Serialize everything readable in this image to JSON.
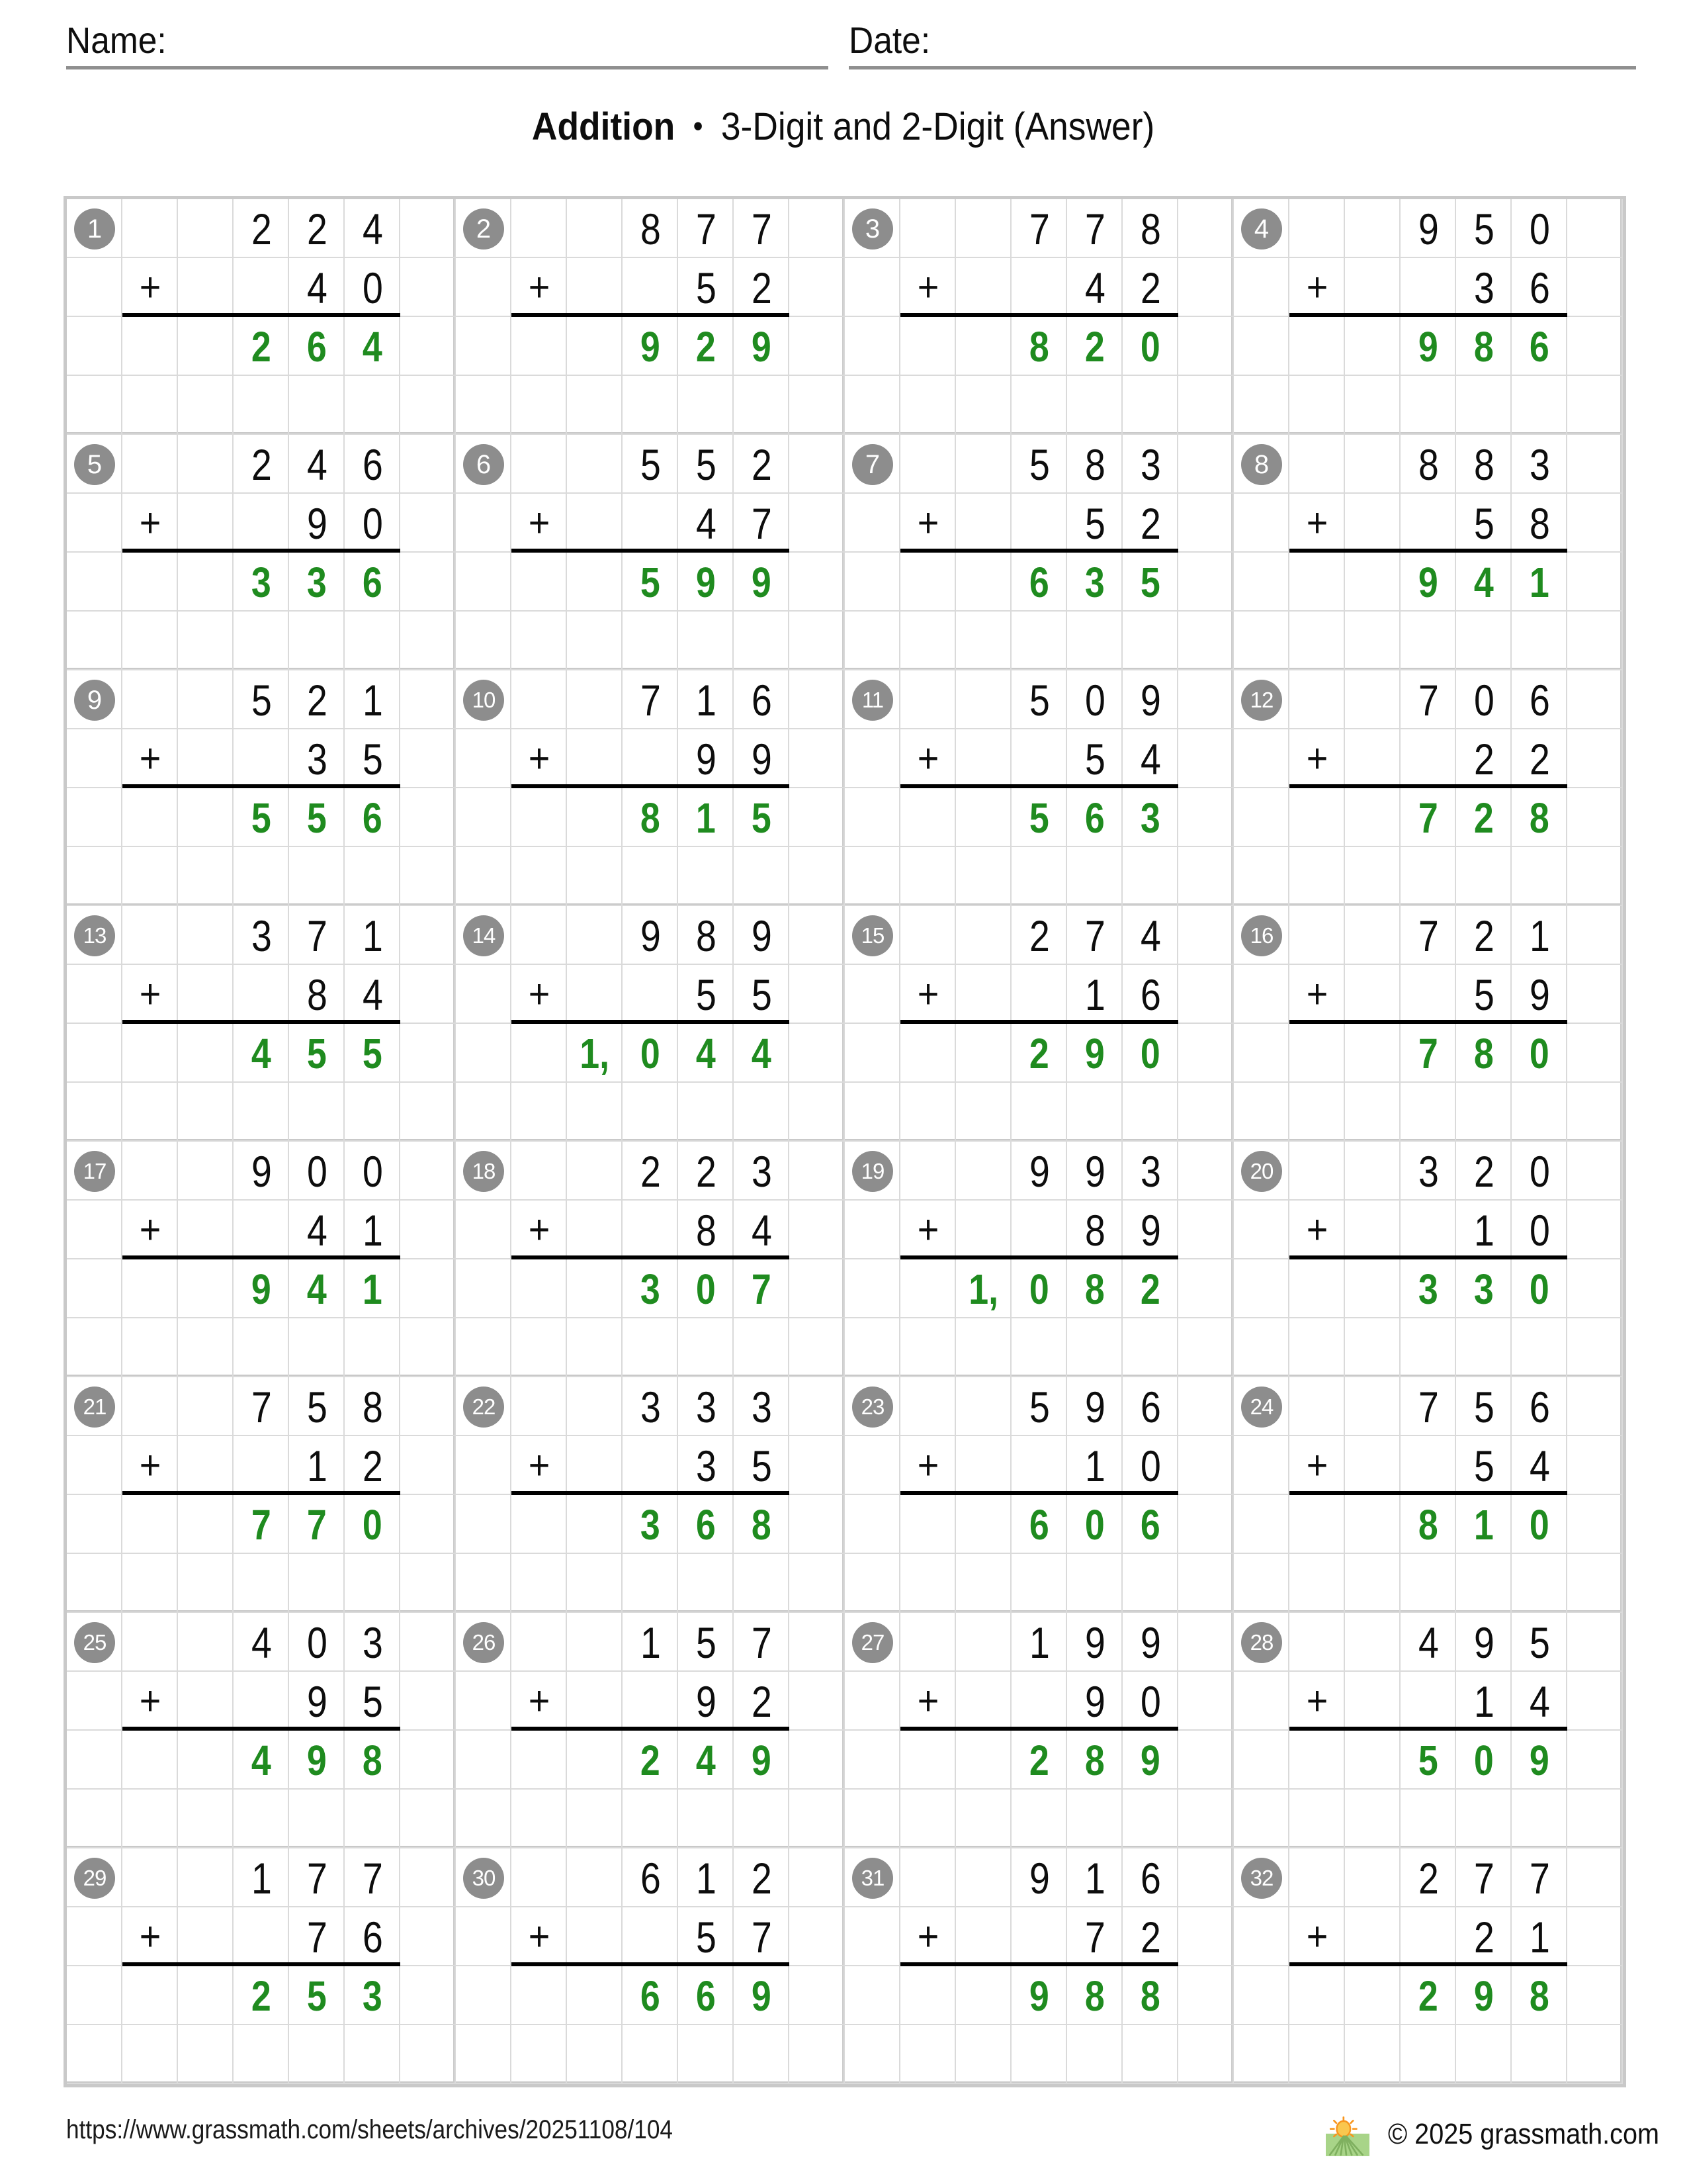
{
  "header": {
    "name_label": "Name:",
    "date_label": "Date:"
  },
  "title": {
    "main": "Addition",
    "bullet": "•",
    "subtitle": "3-Digit and 2-Digit (Answer)"
  },
  "colors": {
    "answer_green": "#1f8b1f",
    "badge_gray": "#8d8d8d",
    "grid_line": "#dadada",
    "grid_heavy": "#c9c9c9",
    "sum_line": "#000000"
  },
  "problems": [
    {
      "number": "1",
      "addend_top": "224",
      "addend_bottom": "40",
      "answer": "264"
    },
    {
      "number": "2",
      "addend_top": "877",
      "addend_bottom": "52",
      "answer": "929"
    },
    {
      "number": "3",
      "addend_top": "778",
      "addend_bottom": "42",
      "answer": "820"
    },
    {
      "number": "4",
      "addend_top": "950",
      "addend_bottom": "36",
      "answer": "986"
    },
    {
      "number": "5",
      "addend_top": "246",
      "addend_bottom": "90",
      "answer": "336"
    },
    {
      "number": "6",
      "addend_top": "552",
      "addend_bottom": "47",
      "answer": "599"
    },
    {
      "number": "7",
      "addend_top": "583",
      "addend_bottom": "52",
      "answer": "635"
    },
    {
      "number": "8",
      "addend_top": "883",
      "addend_bottom": "58",
      "answer": "941"
    },
    {
      "number": "9",
      "addend_top": "521",
      "addend_bottom": "35",
      "answer": "556"
    },
    {
      "number": "10",
      "addend_top": "716",
      "addend_bottom": "99",
      "answer": "815"
    },
    {
      "number": "11",
      "addend_top": "509",
      "addend_bottom": "54",
      "answer": "563"
    },
    {
      "number": "12",
      "addend_top": "706",
      "addend_bottom": "22",
      "answer": "728"
    },
    {
      "number": "13",
      "addend_top": "371",
      "addend_bottom": "84",
      "answer": "455"
    },
    {
      "number": "14",
      "addend_top": "989",
      "addend_bottom": "55",
      "answer": "1,044"
    },
    {
      "number": "15",
      "addend_top": "274",
      "addend_bottom": "16",
      "answer": "290"
    },
    {
      "number": "16",
      "addend_top": "721",
      "addend_bottom": "59",
      "answer": "780"
    },
    {
      "number": "17",
      "addend_top": "900",
      "addend_bottom": "41",
      "answer": "941"
    },
    {
      "number": "18",
      "addend_top": "223",
      "addend_bottom": "84",
      "answer": "307"
    },
    {
      "number": "19",
      "addend_top": "993",
      "addend_bottom": "89",
      "answer": "1,082"
    },
    {
      "number": "20",
      "addend_top": "320",
      "addend_bottom": "10",
      "answer": "330"
    },
    {
      "number": "21",
      "addend_top": "758",
      "addend_bottom": "12",
      "answer": "770"
    },
    {
      "number": "22",
      "addend_top": "333",
      "addend_bottom": "35",
      "answer": "368"
    },
    {
      "number": "23",
      "addend_top": "596",
      "addend_bottom": "10",
      "answer": "606"
    },
    {
      "number": "24",
      "addend_top": "756",
      "addend_bottom": "54",
      "answer": "810"
    },
    {
      "number": "25",
      "addend_top": "403",
      "addend_bottom": "95",
      "answer": "498"
    },
    {
      "number": "26",
      "addend_top": "157",
      "addend_bottom": "92",
      "answer": "249"
    },
    {
      "number": "27",
      "addend_top": "199",
      "addend_bottom": "90",
      "answer": "289"
    },
    {
      "number": "28",
      "addend_top": "495",
      "addend_bottom": "14",
      "answer": "509"
    },
    {
      "number": "29",
      "addend_top": "177",
      "addend_bottom": "76",
      "answer": "253"
    },
    {
      "number": "30",
      "addend_top": "612",
      "addend_bottom": "57",
      "answer": "669"
    },
    {
      "number": "31",
      "addend_top": "916",
      "addend_bottom": "72",
      "answer": "988"
    },
    {
      "number": "32",
      "addend_top": "277",
      "addend_bottom": "21",
      "answer": "298"
    }
  ],
  "footer": {
    "url": "https://www.grassmath.com/sheets/archives/20251108/104",
    "logo": "grassmath-sun-over-grass-logo",
    "copyright": "© 2025 grassmath.com"
  }
}
